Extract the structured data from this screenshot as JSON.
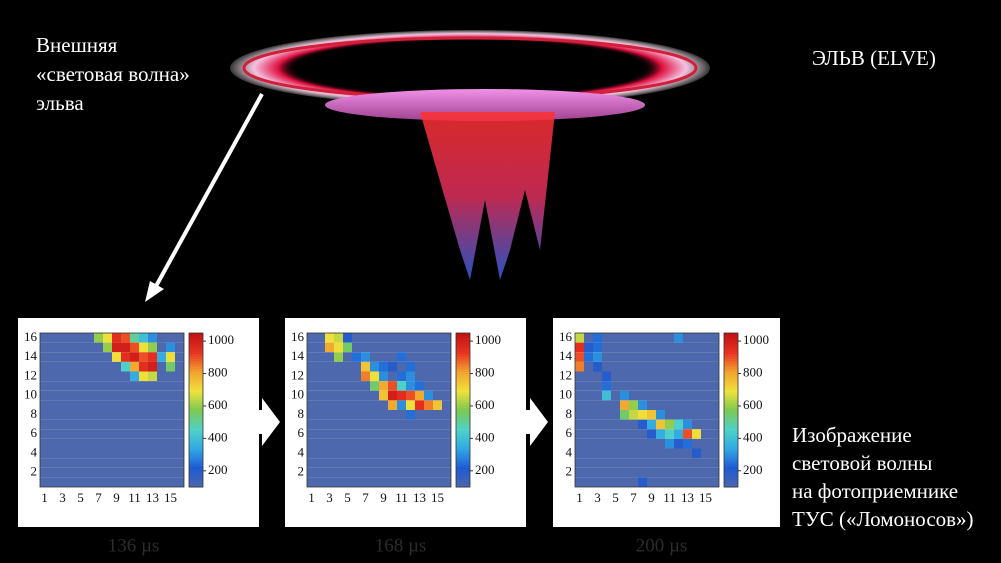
{
  "labels": {
    "left": [
      "Внешняя",
      "«световая волна»",
      "эльва"
    ],
    "right": "ЭЛЬВ (ELVE)",
    "bottom": [
      "Изображение",
      "световой волны",
      "на фотоприемнике",
      "ТУС («Ломоносов»)"
    ]
  },
  "chart_data": [
    {
      "type": "heatmap",
      "caption": "136 µs",
      "x": [
        1,
        2,
        3,
        4,
        5,
        6,
        7,
        8,
        9,
        10,
        11,
        12,
        13,
        14,
        15,
        16
      ],
      "y": [
        16,
        15,
        14,
        13,
        12,
        11,
        10,
        9,
        8,
        7,
        6,
        5,
        4,
        3,
        2,
        1
      ],
      "xticks": [
        1,
        3,
        5,
        7,
        9,
        11,
        13,
        15
      ],
      "yticks": [
        2,
        4,
        6,
        8,
        10,
        12,
        14,
        16
      ],
      "zlim": [
        100,
        1050
      ],
      "zticks": [
        200,
        400,
        600,
        800,
        1000
      ],
      "colorscale": [
        "#4d68ac",
        "#1f5ad2",
        "#31a8e4",
        "#4fd2c8",
        "#7cc850",
        "#efe23c",
        "#f2a22e",
        "#e83222",
        "#c01212"
      ],
      "z": [
        [
          100,
          100,
          100,
          100,
          100,
          100,
          600,
          700,
          950,
          900,
          500,
          400,
          300,
          100,
          100,
          100
        ],
        [
          100,
          100,
          100,
          100,
          100,
          100,
          100,
          600,
          1000,
          1000,
          900,
          700,
          600,
          100,
          300,
          100
        ],
        [
          100,
          100,
          100,
          100,
          100,
          100,
          100,
          100,
          700,
          950,
          1000,
          900,
          950,
          350,
          700,
          100
        ],
        [
          100,
          100,
          100,
          100,
          100,
          100,
          100,
          100,
          100,
          450,
          800,
          950,
          1000,
          100,
          550,
          100
        ],
        [
          100,
          100,
          100,
          100,
          100,
          100,
          100,
          100,
          100,
          100,
          350,
          700,
          650,
          100,
          100,
          100
        ],
        [
          100,
          100,
          100,
          100,
          100,
          100,
          100,
          100,
          100,
          100,
          100,
          100,
          100,
          100,
          100,
          100
        ],
        [
          100,
          100,
          100,
          100,
          100,
          100,
          100,
          100,
          100,
          100,
          100,
          100,
          100,
          100,
          100,
          100
        ],
        [
          100,
          100,
          100,
          100,
          100,
          100,
          100,
          100,
          100,
          100,
          100,
          100,
          100,
          100,
          100,
          100
        ],
        [
          100,
          100,
          100,
          100,
          100,
          100,
          100,
          100,
          100,
          100,
          100,
          100,
          100,
          100,
          100,
          100
        ],
        [
          100,
          100,
          100,
          100,
          100,
          100,
          100,
          100,
          100,
          100,
          100,
          100,
          100,
          100,
          100,
          100
        ],
        [
          100,
          100,
          100,
          100,
          100,
          100,
          100,
          100,
          100,
          100,
          100,
          100,
          100,
          100,
          100,
          100
        ],
        [
          100,
          100,
          100,
          100,
          100,
          100,
          100,
          100,
          100,
          100,
          100,
          100,
          100,
          100,
          100,
          100
        ],
        [
          100,
          100,
          100,
          100,
          100,
          100,
          100,
          100,
          100,
          100,
          100,
          100,
          100,
          100,
          100,
          100
        ],
        [
          100,
          100,
          100,
          100,
          100,
          100,
          100,
          100,
          100,
          100,
          100,
          100,
          100,
          100,
          100,
          100
        ],
        [
          100,
          100,
          100,
          100,
          100,
          100,
          100,
          100,
          100,
          100,
          100,
          100,
          100,
          100,
          100,
          100
        ],
        [
          100,
          100,
          100,
          100,
          100,
          100,
          100,
          100,
          100,
          100,
          100,
          100,
          100,
          100,
          100,
          100
        ]
      ]
    },
    {
      "type": "heatmap",
      "caption": "168 µs",
      "x": [
        1,
        2,
        3,
        4,
        5,
        6,
        7,
        8,
        9,
        10,
        11,
        12,
        13,
        14,
        15,
        16
      ],
      "y": [
        16,
        15,
        14,
        13,
        12,
        11,
        10,
        9,
        8,
        7,
        6,
        5,
        4,
        3,
        2,
        1
      ],
      "xticks": [
        1,
        3,
        5,
        7,
        9,
        11,
        13,
        15
      ],
      "yticks": [
        2,
        4,
        6,
        8,
        10,
        12,
        14,
        16
      ],
      "zlim": [
        100,
        1050
      ],
      "zticks": [
        200,
        400,
        600,
        800,
        1000
      ],
      "colorscale": [
        "#4d68ac",
        "#1f5ad2",
        "#31a8e4",
        "#4fd2c8",
        "#7cc850",
        "#efe23c",
        "#f2a22e",
        "#e83222",
        "#c01212"
      ],
      "z": [
        [
          100,
          100,
          700,
          650,
          200,
          100,
          100,
          100,
          100,
          100,
          100,
          100,
          100,
          100,
          100,
          100
        ],
        [
          100,
          100,
          800,
          700,
          550,
          100,
          100,
          100,
          100,
          100,
          100,
          100,
          100,
          100,
          100,
          100
        ],
        [
          100,
          100,
          100,
          600,
          100,
          250,
          300,
          100,
          100,
          100,
          250,
          100,
          100,
          100,
          100,
          100
        ],
        [
          100,
          100,
          100,
          100,
          100,
          100,
          750,
          300,
          250,
          200,
          100,
          250,
          100,
          100,
          100,
          100
        ],
        [
          100,
          100,
          100,
          100,
          100,
          100,
          850,
          700,
          300,
          100,
          250,
          300,
          100,
          100,
          100,
          100
        ],
        [
          100,
          100,
          100,
          100,
          100,
          100,
          100,
          550,
          800,
          900,
          450,
          300,
          250,
          100,
          100,
          100
        ],
        [
          100,
          100,
          100,
          100,
          100,
          100,
          100,
          100,
          750,
          1000,
          950,
          900,
          800,
          300,
          100,
          100
        ],
        [
          100,
          100,
          100,
          100,
          100,
          100,
          100,
          100,
          100,
          800,
          300,
          700,
          950,
          850,
          750,
          100
        ],
        [
          100,
          100,
          100,
          100,
          100,
          100,
          100,
          100,
          100,
          100,
          100,
          250,
          100,
          100,
          100,
          100
        ],
        [
          100,
          100,
          100,
          100,
          100,
          100,
          100,
          100,
          100,
          100,
          100,
          100,
          100,
          100,
          100,
          100
        ],
        [
          100,
          100,
          100,
          100,
          100,
          100,
          100,
          100,
          100,
          100,
          100,
          100,
          100,
          100,
          100,
          100
        ],
        [
          100,
          100,
          100,
          100,
          100,
          100,
          100,
          100,
          100,
          100,
          100,
          100,
          100,
          100,
          100,
          100
        ],
        [
          100,
          100,
          100,
          100,
          100,
          100,
          100,
          100,
          100,
          100,
          100,
          100,
          100,
          100,
          100,
          100
        ],
        [
          100,
          100,
          100,
          100,
          100,
          100,
          100,
          100,
          100,
          100,
          100,
          100,
          100,
          100,
          100,
          100
        ],
        [
          100,
          100,
          100,
          100,
          100,
          100,
          100,
          100,
          100,
          100,
          100,
          100,
          100,
          100,
          100,
          100
        ],
        [
          100,
          100,
          100,
          100,
          100,
          100,
          100,
          100,
          100,
          100,
          100,
          100,
          100,
          100,
          100,
          100
        ]
      ]
    },
    {
      "type": "heatmap",
      "caption": "200 µs",
      "x": [
        1,
        2,
        3,
        4,
        5,
        6,
        7,
        8,
        9,
        10,
        11,
        12,
        13,
        14,
        15,
        16
      ],
      "y": [
        16,
        15,
        14,
        13,
        12,
        11,
        10,
        9,
        8,
        7,
        6,
        5,
        4,
        3,
        2,
        1
      ],
      "xticks": [
        1,
        3,
        5,
        7,
        9,
        11,
        13,
        15
      ],
      "yticks": [
        2,
        4,
        6,
        8,
        10,
        12,
        14,
        16
      ],
      "zlim": [
        100,
        1050
      ],
      "zticks": [
        200,
        400,
        600,
        800,
        1000
      ],
      "colorscale": [
        "#4d68ac",
        "#1f5ad2",
        "#31a8e4",
        "#4fd2c8",
        "#7cc850",
        "#efe23c",
        "#f2a22e",
        "#e83222",
        "#c01212"
      ],
      "z": [
        [
          650,
          100,
          250,
          100,
          100,
          100,
          100,
          100,
          100,
          100,
          100,
          300,
          100,
          100,
          100,
          100
        ],
        [
          950,
          200,
          250,
          100,
          100,
          100,
          100,
          100,
          100,
          100,
          100,
          100,
          100,
          100,
          100,
          100
        ],
        [
          900,
          250,
          300,
          100,
          100,
          100,
          100,
          100,
          100,
          100,
          100,
          100,
          100,
          100,
          100,
          100
        ],
        [
          850,
          100,
          200,
          100,
          100,
          100,
          100,
          100,
          100,
          100,
          100,
          100,
          100,
          100,
          100,
          100
        ],
        [
          100,
          100,
          100,
          200,
          100,
          100,
          100,
          100,
          100,
          100,
          100,
          100,
          100,
          100,
          100,
          100
        ],
        [
          100,
          100,
          100,
          250,
          100,
          100,
          100,
          100,
          100,
          100,
          100,
          100,
          100,
          100,
          100,
          100
        ],
        [
          100,
          100,
          100,
          400,
          100,
          300,
          100,
          100,
          100,
          100,
          100,
          100,
          100,
          100,
          100,
          100
        ],
        [
          100,
          100,
          100,
          100,
          100,
          800,
          600,
          300,
          100,
          100,
          100,
          100,
          100,
          100,
          100,
          100
        ],
        [
          100,
          100,
          100,
          100,
          100,
          550,
          650,
          700,
          750,
          300,
          100,
          100,
          100,
          100,
          100,
          100
        ],
        [
          100,
          100,
          100,
          100,
          100,
          100,
          100,
          200,
          350,
          750,
          600,
          450,
          300,
          100,
          100,
          100
        ],
        [
          100,
          100,
          100,
          100,
          100,
          100,
          100,
          100,
          200,
          350,
          450,
          350,
          900,
          700,
          100,
          100
        ],
        [
          100,
          100,
          100,
          100,
          100,
          100,
          100,
          100,
          100,
          100,
          300,
          200,
          250,
          100,
          100,
          100
        ],
        [
          100,
          100,
          100,
          100,
          100,
          100,
          100,
          100,
          100,
          100,
          100,
          100,
          100,
          200,
          100,
          100
        ],
        [
          100,
          100,
          100,
          100,
          100,
          100,
          100,
          100,
          100,
          100,
          100,
          100,
          100,
          100,
          100,
          100
        ],
        [
          100,
          100,
          100,
          100,
          100,
          100,
          100,
          100,
          100,
          100,
          100,
          100,
          100,
          100,
          100,
          100
        ],
        [
          100,
          100,
          100,
          100,
          100,
          100,
          100,
          200,
          100,
          100,
          100,
          100,
          100,
          100,
          100,
          100
        ]
      ]
    }
  ]
}
